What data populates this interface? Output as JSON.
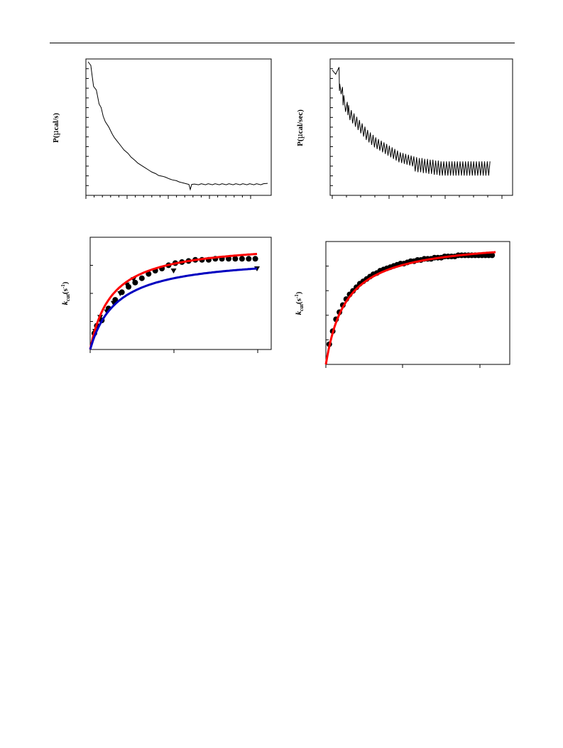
{
  "chart_data": [
    {
      "type": "line",
      "panel": "top-left",
      "ylabel": "P(µcal/s)",
      "xlabel": "",
      "grid": false,
      "legend": "none",
      "ylabel_parts": [
        "P(",
        "µ",
        "cal/s)"
      ],
      "series": [
        {
          "x": [
            0,
            4,
            6,
            8,
            12,
            16,
            19,
            22,
            25,
            30,
            35,
            38,
            42,
            48,
            52,
            58,
            62,
            68,
            72,
            78,
            82,
            88,
            92,
            98,
            102,
            108,
            112,
            118,
            122,
            128,
            132,
            138,
            142,
            146,
            148,
            150,
            154,
            160,
            164,
            170,
            174,
            180,
            184,
            190,
            194,
            200,
            204,
            210,
            214,
            220,
            224,
            230,
            234,
            240,
            244,
            250,
            254,
            260
          ],
          "y": [
            100,
            98,
            92,
            86,
            84,
            76,
            74,
            69,
            66,
            63,
            59,
            57,
            55,
            52,
            50,
            48,
            46,
            44,
            42.5,
            41,
            40,
            38.5,
            37.5,
            36.5,
            35.5,
            35,
            34.5,
            33.5,
            33,
            32.5,
            31.8,
            31.2,
            30.8,
            30.4,
            27.5,
            30.4,
            30.6,
            30.2,
            30.8,
            30.2,
            30.8,
            30.2,
            30.8,
            30.2,
            30.8,
            30.2,
            30.8,
            30.2,
            30.8,
            30.2,
            30.8,
            30.2,
            30.8,
            30.2,
            30.8,
            30.2,
            30.8,
            31
          ]
        }
      ]
    },
    {
      "type": "line",
      "panel": "top-right",
      "ylabel": "P(µcal/sec)",
      "xlabel": "",
      "grid": false,
      "legend": "none",
      "ylabel_parts": [
        "P(",
        "µ",
        "cal/sec)"
      ],
      "series": [
        {
          "x": [
            0,
            10,
            11,
            15,
            17,
            22,
            24,
            28,
            32,
            36,
            40,
            44,
            48,
            52,
            56,
            60,
            64,
            68,
            72,
            76,
            80,
            84,
            88,
            92,
            96,
            100,
            104,
            108,
            112,
            116,
            120,
            124,
            128,
            132,
            136,
            140,
            144,
            148,
            152,
            156,
            160,
            164,
            168,
            172,
            176,
            180,
            184,
            188,
            192,
            196,
            200,
            204,
            208,
            212,
            216,
            220,
            224,
            228,
            232
          ],
          "y": [
            100,
            100,
            90,
            88,
            83,
            79,
            77,
            74,
            72,
            70,
            68,
            66,
            64,
            62,
            60.5,
            59,
            57.5,
            56.5,
            55.5,
            54.5,
            53.5,
            52.5,
            51.5,
            50.5,
            49.5,
            48.5,
            48,
            47.5,
            47,
            46.5,
            46,
            45.5,
            45,
            45,
            44.5,
            44.5,
            44,
            44,
            43.5,
            43.5,
            43,
            43,
            43,
            43,
            43,
            43,
            43,
            43,
            43,
            43,
            43,
            43,
            43,
            43,
            43,
            43,
            43,
            43,
            43
          ],
          "spikes": [
            0,
            0,
            0,
            0,
            0,
            0,
            0,
            0,
            0,
            0,
            0,
            0,
            0,
            0,
            0,
            0,
            0,
            0,
            0,
            0,
            0,
            0,
            0,
            0,
            0,
            0,
            0,
            0,
            0,
            0,
            0,
            0,
            0,
            0,
            0,
            0,
            0,
            0,
            0,
            0,
            0,
            0,
            0,
            0,
            0,
            0,
            0,
            0,
            0,
            0,
            0,
            0,
            0,
            0,
            0,
            0,
            0,
            0,
            0
          ]
        }
      ]
    },
    {
      "type": "scatter",
      "panel": "bottom-left",
      "ylabel": "kcat(s-1)",
      "xlabel": "",
      "grid": false,
      "legend": "none",
      "xlim": [
        0,
        100
      ],
      "ylim": [
        0,
        100
      ],
      "ylabel_parts": [
        "k",
        "cat",
        "(s",
        "-1",
        ")"
      ],
      "series": [
        {
          "marker": "circle",
          "color": "#000000",
          "x": [
            2.5,
            4,
            7,
            11,
            15,
            19,
            23,
            27,
            31,
            35,
            39,
            43,
            47,
            51,
            55,
            59,
            63,
            67,
            71,
            75,
            79,
            83,
            87,
            91,
            95,
            99
          ],
          "y": [
            15,
            22,
            27,
            38,
            46,
            53,
            58,
            62,
            66,
            70,
            73,
            75,
            78,
            80,
            81,
            82,
            83,
            83,
            83,
            84,
            84,
            84,
            84,
            84,
            84,
            84
          ]
        },
        {
          "marker": "triangle-down",
          "color": "#000000",
          "x": [
            3,
            6,
            10,
            14,
            18,
            22,
            26,
            50,
            100
          ],
          "y": [
            17,
            30,
            35,
            43,
            52,
            60,
            65,
            73,
            75
          ]
        },
        {
          "marker": "none",
          "color": "#ff0000",
          "curve": "mm",
          "vmax": 100,
          "km": 13,
          "x": [
            0,
            100
          ]
        },
        {
          "marker": "none",
          "color": "#0000c0",
          "curve": "mm",
          "vmax": 87,
          "km": 16,
          "x": [
            0,
            100
          ]
        }
      ]
    },
    {
      "type": "scatter",
      "panel": "bottom-right",
      "ylabel": "kcat(s-1)",
      "xlabel": "",
      "grid": false,
      "legend": "none",
      "xlim": [
        0,
        100
      ],
      "ylim": [
        0,
        100
      ],
      "ylabel_parts": [
        "k",
        "cat",
        "(s",
        "-1",
        ")"
      ],
      "series": [
        {
          "marker": "circle",
          "color": "#000000",
          "x": [
            2,
            4,
            6,
            8,
            10,
            12,
            14,
            16,
            18,
            20,
            22,
            24,
            26,
            28,
            30,
            32,
            34,
            36,
            38,
            40,
            42,
            44,
            46,
            48,
            50,
            52,
            54,
            56,
            58,
            60,
            62,
            64,
            66,
            68,
            70,
            72,
            74,
            76,
            78,
            80,
            82,
            84,
            86,
            88,
            90,
            92,
            94,
            96,
            98
          ],
          "y": [
            17,
            28,
            38,
            44,
            50,
            55,
            59,
            62,
            65,
            68,
            70,
            72,
            74,
            76,
            77,
            79,
            80,
            81,
            82,
            83,
            84,
            85,
            85,
            86,
            87,
            87,
            88,
            88,
            89,
            89,
            89,
            90,
            90,
            90,
            91,
            91,
            91,
            91,
            92,
            92,
            92,
            92,
            92,
            92,
            92,
            92,
            92,
            92,
            92
          ]
        },
        {
          "marker": "none",
          "color": "#ff0000",
          "curve": "mm",
          "vmax": 106,
          "km": 12,
          "x": [
            0,
            100
          ]
        }
      ]
    }
  ]
}
